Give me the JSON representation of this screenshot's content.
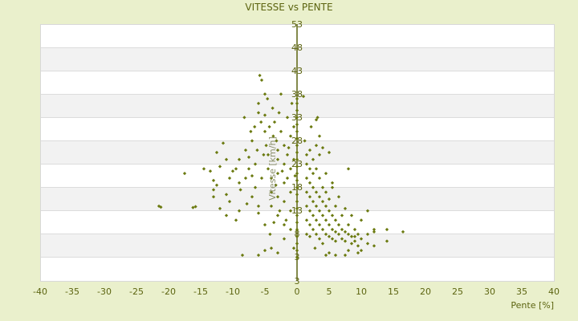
{
  "chart_data": {
    "type": "scatter",
    "title": "VITESSE vs PENTE",
    "xlabel": "Pente [%]",
    "ylabel": "Vitesse [km/h]",
    "xlim": [
      -40,
      40
    ],
    "ylim": [
      -2,
      53
    ],
    "x_ticks": [
      "-40",
      "-35",
      "-30",
      "-25",
      "-20",
      "-15",
      "-10",
      "-5",
      "0",
      "5",
      "10",
      "15",
      "20",
      "25",
      "30",
      "35",
      "40"
    ],
    "y_ticks": [
      "53",
      "48",
      "43",
      "38",
      "33",
      "28",
      "23",
      "18",
      "13",
      "8",
      "3",
      "3"
    ],
    "grid": true,
    "banded_background": true,
    "colors": {
      "background": "#eaf0cc",
      "point": "#6b7a10",
      "axis": "#5c6410",
      "band": "#f2f2f2"
    },
    "points": [
      [
        -21.5,
        14
      ],
      [
        -21.2,
        13.8
      ],
      [
        -16.2,
        13.7
      ],
      [
        -15.8,
        13.9
      ],
      [
        -17.5,
        21
      ],
      [
        -14.5,
        22
      ],
      [
        -13.5,
        21.5
      ],
      [
        -13,
        19.5
      ],
      [
        -13,
        17.5
      ],
      [
        -12.5,
        18.5
      ],
      [
        -12,
        22.5
      ],
      [
        -12.5,
        25.5
      ],
      [
        -11.5,
        27.5
      ],
      [
        -11,
        24
      ],
      [
        -11,
        12
      ],
      [
        -10.5,
        20
      ],
      [
        -10,
        21.5
      ],
      [
        -9.5,
        22
      ],
      [
        -9,
        24
      ],
      [
        -9,
        19
      ],
      [
        -8.8,
        17.5
      ],
      [
        -8,
        20
      ],
      [
        -8,
        26
      ],
      [
        -7.5,
        24.5
      ],
      [
        -7.5,
        22
      ],
      [
        -7,
        28
      ],
      [
        -7,
        20.5
      ],
      [
        -6.5,
        23
      ],
      [
        -6.5,
        18
      ],
      [
        -6,
        36
      ],
      [
        -6,
        34
      ],
      [
        -5.8,
        42
      ],
      [
        -5.5,
        41
      ],
      [
        -5,
        38
      ],
      [
        -5,
        33.5
      ],
      [
        -5,
        30
      ],
      [
        -4.5,
        25
      ],
      [
        -4.5,
        22
      ],
      [
        -4,
        20
      ],
      [
        -4,
        17
      ],
      [
        -4,
        14
      ],
      [
        -3.8,
        35
      ],
      [
        -3.5,
        32
      ],
      [
        -3.2,
        28
      ],
      [
        -3,
        26
      ],
      [
        -3,
        24
      ],
      [
        -3,
        21
      ],
      [
        -3,
        16
      ],
      [
        -3,
        12
      ],
      [
        -2.5,
        38
      ],
      [
        -2.5,
        30
      ],
      [
        -2,
        27
      ],
      [
        -2,
        23
      ],
      [
        -2,
        19
      ],
      [
        -2,
        15
      ],
      [
        -2,
        10
      ],
      [
        -1.5,
        33
      ],
      [
        -1.5,
        25
      ],
      [
        -1.5,
        20
      ],
      [
        -1,
        29
      ],
      [
        -1,
        22
      ],
      [
        -1,
        17
      ],
      [
        -1,
        13
      ],
      [
        -0.8,
        36
      ],
      [
        -0.5,
        31
      ],
      [
        -0.5,
        24
      ],
      [
        -6,
        12.5
      ],
      [
        -5,
        10
      ],
      [
        -4,
        5
      ],
      [
        -8.5,
        3.5
      ],
      [
        -6,
        3.5
      ],
      [
        -5,
        4.5
      ],
      [
        -3,
        4
      ],
      [
        -10.5,
        15
      ],
      [
        -11,
        16.5
      ],
      [
        -9.5,
        11
      ],
      [
        -7,
        16
      ],
      [
        -6,
        14
      ],
      [
        -5.5,
        20
      ],
      [
        -4.8,
        27
      ],
      [
        -5.2,
        25
      ],
      [
        -6.2,
        26
      ],
      [
        -7.2,
        30
      ],
      [
        -8.2,
        33
      ],
      [
        -4.3,
        31
      ],
      [
        -3.7,
        29
      ],
      [
        -2.8,
        34
      ],
      [
        -4.6,
        37
      ],
      [
        -5.6,
        32
      ],
      [
        -6.6,
        31
      ],
      [
        -3.3,
        18.5
      ],
      [
        -2.3,
        21.5
      ],
      [
        -1.3,
        26.5
      ],
      [
        -0.3,
        20.5
      ],
      [
        -2.7,
        13
      ],
      [
        -1.7,
        11
      ],
      [
        -3.6,
        10.5
      ],
      [
        -4.2,
        8
      ],
      [
        -2,
        7
      ],
      [
        -1,
        9
      ],
      [
        -0.5,
        5
      ],
      [
        -12,
        13.5
      ],
      [
        -13,
        16
      ],
      [
        -9,
        13
      ],
      [
        -7.8,
        14.5
      ],
      [
        0,
        3
      ],
      [
        0,
        4.5
      ],
      [
        0,
        6
      ],
      [
        0,
        7.5
      ],
      [
        0,
        9
      ],
      [
        0,
        10.5
      ],
      [
        0,
        12
      ],
      [
        0,
        13.5
      ],
      [
        0,
        15
      ],
      [
        0,
        16.5
      ],
      [
        0,
        18
      ],
      [
        0,
        19.5
      ],
      [
        0,
        21
      ],
      [
        0,
        22.5
      ],
      [
        0,
        24
      ],
      [
        0,
        25.5
      ],
      [
        0,
        27
      ],
      [
        0,
        28.5
      ],
      [
        0,
        30
      ],
      [
        0,
        31.5
      ],
      [
        0,
        33
      ],
      [
        0,
        34.5
      ],
      [
        0,
        36
      ],
      [
        0,
        37
      ],
      [
        1,
        37.5
      ],
      [
        1.2,
        28
      ],
      [
        1.5,
        25
      ],
      [
        1.5,
        23
      ],
      [
        1.5,
        20
      ],
      [
        1.5,
        17
      ],
      [
        1.5,
        14
      ],
      [
        1.5,
        11
      ],
      [
        1.5,
        8
      ],
      [
        2,
        26
      ],
      [
        2,
        22
      ],
      [
        2,
        19
      ],
      [
        2,
        16
      ],
      [
        2,
        13
      ],
      [
        2,
        10
      ],
      [
        2,
        7.5
      ],
      [
        2.5,
        24
      ],
      [
        2.5,
        21
      ],
      [
        2.5,
        18
      ],
      [
        2.5,
        15
      ],
      [
        2.5,
        12
      ],
      [
        2.5,
        9
      ],
      [
        3,
        32.5
      ],
      [
        3.2,
        33
      ],
      [
        3,
        27
      ],
      [
        3,
        22
      ],
      [
        3,
        17
      ],
      [
        3,
        14
      ],
      [
        3,
        11
      ],
      [
        3,
        8
      ],
      [
        3.5,
        29
      ],
      [
        3.5,
        25
      ],
      [
        3.5,
        20
      ],
      [
        3.5,
        16
      ],
      [
        3.5,
        13
      ],
      [
        3.5,
        10
      ],
      [
        3.5,
        7
      ],
      [
        4,
        18
      ],
      [
        4,
        15
      ],
      [
        4,
        12
      ],
      [
        4,
        9
      ],
      [
        4,
        6
      ],
      [
        4.5,
        21
      ],
      [
        4.5,
        17
      ],
      [
        4.5,
        14
      ],
      [
        4.5,
        11
      ],
      [
        4.5,
        8
      ],
      [
        5,
        15.5
      ],
      [
        5,
        13
      ],
      [
        5,
        10
      ],
      [
        5,
        7.5
      ],
      [
        5,
        4
      ],
      [
        5.5,
        18
      ],
      [
        5.5,
        12
      ],
      [
        5.5,
        9
      ],
      [
        5.5,
        7
      ],
      [
        6,
        14
      ],
      [
        6,
        11
      ],
      [
        6,
        8.5
      ],
      [
        6,
        6.5
      ],
      [
        6.5,
        16
      ],
      [
        6.5,
        10
      ],
      [
        6.5,
        8
      ],
      [
        7,
        12
      ],
      [
        7,
        9
      ],
      [
        7,
        7
      ],
      [
        7.5,
        13.5
      ],
      [
        7.5,
        8.5
      ],
      [
        7.5,
        6.5
      ],
      [
        8,
        10
      ],
      [
        8,
        8
      ],
      [
        8,
        4.5
      ],
      [
        8.5,
        12
      ],
      [
        8.5,
        7.5
      ],
      [
        8.5,
        6
      ],
      [
        9,
        9
      ],
      [
        9,
        7.5
      ],
      [
        9,
        6.5
      ],
      [
        9.5,
        8
      ],
      [
        9.5,
        5.5
      ],
      [
        10,
        11
      ],
      [
        10,
        7
      ],
      [
        10,
        4.5
      ],
      [
        11,
        13
      ],
      [
        11,
        8
      ],
      [
        11,
        6
      ],
      [
        12,
        9
      ],
      [
        12,
        8.5
      ],
      [
        12,
        5.5
      ],
      [
        14,
        9
      ],
      [
        14,
        6.5
      ],
      [
        16.5,
        8.5
      ],
      [
        8,
        22
      ],
      [
        5.5,
        19
      ],
      [
        2.2,
        31
      ],
      [
        4,
        26.5
      ],
      [
        5,
        25.5
      ],
      [
        2.8,
        5
      ],
      [
        4.5,
        3.5
      ],
      [
        6,
        3.5
      ],
      [
        7.5,
        3.5
      ],
      [
        9.5,
        4
      ]
    ]
  }
}
